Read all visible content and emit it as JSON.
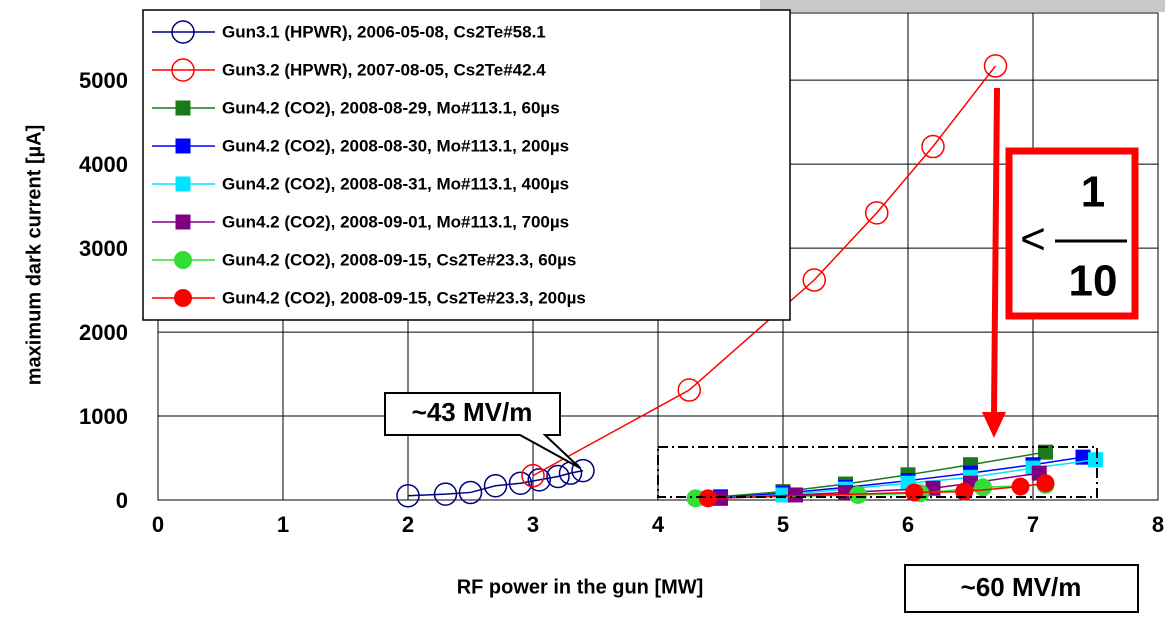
{
  "chart_data": {
    "type": "line",
    "x_label": "RF power in the gun  [MW]",
    "y_label": "maximum dark current  [µA]",
    "xlim": [
      0,
      8
    ],
    "xticks": [
      0,
      1,
      2,
      3,
      4,
      5,
      6,
      7,
      8
    ],
    "ylim": [
      0,
      5800
    ],
    "yticks": [
      0,
      1000,
      2000,
      3000,
      4000,
      5000
    ],
    "grid": true,
    "legend": "upper left",
    "series": [
      {
        "name": "Gun3.1 (HPWR), 2006-05-08, Cs2Te#58.1",
        "color": "#000080",
        "marker": "open-circle",
        "x": [
          2.0,
          2.3,
          2.5,
          2.7,
          2.9,
          3.05,
          3.2,
          3.3,
          3.4
        ],
        "values": [
          50,
          70,
          90,
          170,
          200,
          240,
          280,
          320,
          350
        ]
      },
      {
        "name": "Gun3.2 (HPWR), 2007-08-05, Cs2Te#42.4",
        "color": "#ff0000",
        "marker": "open-circle",
        "x": [
          3.0,
          4.25,
          5.25,
          5.75,
          6.2,
          6.7
        ],
        "values": [
          290,
          1310,
          2620,
          3420,
          4210,
          5170
        ]
      },
      {
        "name": "Gun4.2 (CO2), 2008-08-29, Mo#113.1, 60µs",
        "color": "#1a7a1a",
        "marker": "square",
        "x": [
          4.5,
          5.0,
          5.5,
          6.0,
          6.5,
          7.1
        ],
        "values": [
          40,
          100,
          190,
          300,
          420,
          570
        ]
      },
      {
        "name": "Gun4.2 (CO2), 2008-08-30, Mo#113.1, 200µs",
        "color": "#0000ff",
        "marker": "square",
        "x": [
          4.5,
          5.0,
          5.5,
          6.0,
          6.5,
          7.0,
          7.4
        ],
        "values": [
          30,
          80,
          150,
          230,
          320,
          420,
          510
        ]
      },
      {
        "name": "Gun4.2 (CO2), 2008-08-31, Mo#113.1, 400µs",
        "color": "#00e5ff",
        "marker": "square",
        "x": [
          4.4,
          5.0,
          5.5,
          6.0,
          6.5,
          7.0,
          7.5
        ],
        "values": [
          20,
          60,
          130,
          200,
          270,
          380,
          480
        ]
      },
      {
        "name": "Gun4.2 (CO2), 2008-09-01, Mo#113.1, 700µs",
        "color": "#800080",
        "marker": "square",
        "x": [
          4.5,
          5.1,
          5.5,
          6.2,
          6.5,
          7.05
        ],
        "values": [
          20,
          60,
          90,
          140,
          200,
          320
        ]
      },
      {
        "name": "Gun4.2 (CO2), 2008-09-15, Cs2Te#23.3, 60µs",
        "color": "#33dd33",
        "marker": "circle",
        "x": [
          4.3,
          5.6,
          6.1,
          6.6,
          7.1
        ],
        "values": [
          20,
          60,
          80,
          150,
          180
        ]
      },
      {
        "name": "Gun4.2 (CO2), 2008-09-15, Cs2Te#23.3, 200µs",
        "color": "#ff0000",
        "marker": "circle",
        "x": [
          4.4,
          6.05,
          6.45,
          6.9,
          7.1
        ],
        "values": [
          20,
          90,
          100,
          160,
          200
        ]
      }
    ],
    "annotations": {
      "field_low": "~43 MV/m",
      "field_high": "~60 MV/m",
      "less": "<",
      "numerator": "1",
      "denominator": "10"
    }
  }
}
